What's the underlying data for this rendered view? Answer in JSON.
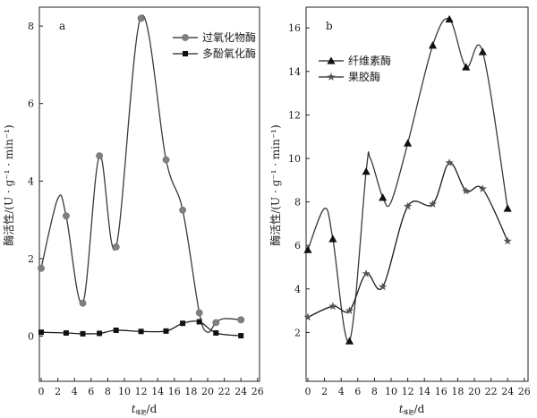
{
  "chart_data": [
    {
      "panel": "a",
      "type": "line",
      "x": [
        0,
        3,
        5,
        7,
        9,
        12,
        15,
        17,
        19,
        21,
        24
      ],
      "xticks": [
        0,
        2,
        4,
        6,
        8,
        10,
        12,
        14,
        16,
        18,
        20,
        22,
        24,
        26
      ],
      "xlim": [
        0,
        26
      ],
      "yticks": [
        0,
        2,
        4,
        6,
        8
      ],
      "ylim": [
        -0.8,
        8.5
      ],
      "ylabel": "酶活性/(U · g⁻¹ · min⁻¹)",
      "xlabel": {
        "var": "t",
        "sub": "堆肥",
        "unit": "/d"
      },
      "legend_position": "top-right",
      "series": [
        {
          "name": "过氧化物酶",
          "marker": "circle",
          "values": [
            1.75,
            3.1,
            0.85,
            4.65,
            2.3,
            8.2,
            4.55,
            3.25,
            0.6,
            0.35,
            0.42
          ],
          "curve_x": [
            0,
            2,
            3,
            5,
            7,
            9,
            12,
            15,
            17,
            19,
            20,
            21,
            22,
            24
          ],
          "curve_y": [
            1.75,
            3.55,
            3.1,
            0.85,
            4.65,
            2.3,
            8.25,
            4.55,
            3.25,
            0.6,
            0.1,
            0.35,
            0.45,
            0.42
          ]
        },
        {
          "name": "多酚氧化酶",
          "marker": "square",
          "values": [
            0.1,
            0.08,
            0.06,
            0.07,
            0.15,
            0.12,
            0.13,
            0.33,
            0.37,
            0.08,
            0.01
          ],
          "curve_x": [
            0,
            3,
            5,
            7,
            9,
            12,
            15,
            17,
            19,
            21,
            24
          ],
          "curve_y": [
            0.1,
            0.08,
            0.06,
            0.07,
            0.15,
            0.12,
            0.13,
            0.33,
            0.37,
            0.08,
            0.01
          ]
        }
      ]
    },
    {
      "panel": "b",
      "type": "line",
      "x": [
        0,
        3,
        5,
        7,
        9,
        12,
        15,
        17,
        19,
        21,
        24
      ],
      "xticks": [
        0,
        2,
        4,
        6,
        8,
        10,
        12,
        14,
        16,
        18,
        20,
        22,
        24,
        26
      ],
      "xlim": [
        0,
        26
      ],
      "yticks": [
        2,
        4,
        6,
        8,
        10,
        12,
        14,
        16
      ],
      "ylim": [
        0.2,
        17.2
      ],
      "ylabel": "酶活性/(U · g⁻¹ · min⁻¹)",
      "xlabel": {
        "var": "t",
        "sub": "堆肥",
        "unit": "/d"
      },
      "legend_position": "top-left",
      "series": [
        {
          "name": "纤维素酶",
          "marker": "triangle",
          "values": [
            5.8,
            6.3,
            1.6,
            9.4,
            8.2,
            10.7,
            15.2,
            16.4,
            14.2,
            14.9,
            7.7
          ],
          "curve_x": [
            0,
            2,
            3,
            5,
            7,
            7.5,
            9,
            10,
            12,
            15,
            17,
            19,
            21,
            24
          ],
          "curve_y": [
            5.8,
            7.7,
            6.3,
            1.6,
            9.4,
            10.0,
            8.2,
            8.0,
            10.7,
            15.2,
            16.4,
            14.2,
            14.9,
            7.7
          ]
        },
        {
          "name": "果胶酶",
          "marker": "star",
          "values": [
            2.7,
            3.2,
            3.0,
            4.7,
            4.1,
            7.8,
            7.9,
            9.8,
            8.5,
            8.6,
            6.2
          ],
          "curve_x": [
            0,
            3,
            5,
            7,
            9,
            12,
            15,
            17,
            19,
            21,
            24
          ],
          "curve_y": [
            2.7,
            3.2,
            3.0,
            4.7,
            4.1,
            7.8,
            7.9,
            9.8,
            8.5,
            8.6,
            6.2
          ]
        }
      ]
    }
  ]
}
